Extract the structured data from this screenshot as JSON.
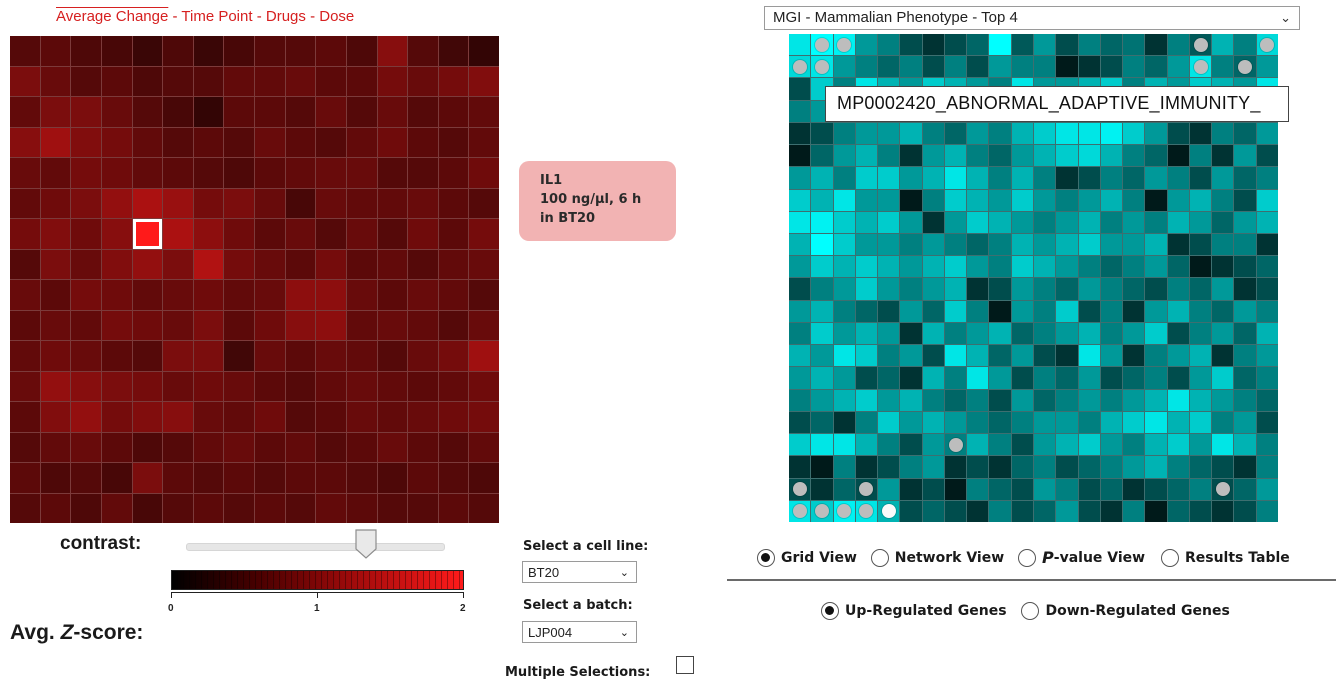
{
  "left_panel": {
    "tabs": [
      {
        "label": "Average Change",
        "active": true
      },
      {
        "label": "Time Point",
        "active": false
      },
      {
        "label": "Drugs",
        "active": false
      },
      {
        "label": "Dose",
        "active": false
      }
    ],
    "tab_separator": "-",
    "grid": {
      "rows": 16,
      "cols": 16,
      "values": [
        [
          0.55,
          0.6,
          0.5,
          0.45,
          0.35,
          0.5,
          0.35,
          0.45,
          0.55,
          0.55,
          0.6,
          0.5,
          0.95,
          0.55,
          0.4,
          0.3
        ],
        [
          0.85,
          0.7,
          0.55,
          0.6,
          0.5,
          0.55,
          0.55,
          0.65,
          0.65,
          0.7,
          0.6,
          0.6,
          0.8,
          0.7,
          0.8,
          0.9
        ],
        [
          0.65,
          0.85,
          0.85,
          0.7,
          0.55,
          0.45,
          0.3,
          0.6,
          0.6,
          0.55,
          0.7,
          0.55,
          0.7,
          0.55,
          0.6,
          0.65
        ],
        [
          0.95,
          1.15,
          0.9,
          0.8,
          0.65,
          0.55,
          0.6,
          0.55,
          0.7,
          0.6,
          0.55,
          0.65,
          0.75,
          0.6,
          0.55,
          0.65
        ],
        [
          0.7,
          0.65,
          0.8,
          0.75,
          0.65,
          0.6,
          0.55,
          0.5,
          0.6,
          0.65,
          0.7,
          0.7,
          0.55,
          0.55,
          0.6,
          0.75
        ],
        [
          0.65,
          0.75,
          0.85,
          1.05,
          1.25,
          1.1,
          0.8,
          0.85,
          0.7,
          0.45,
          0.7,
          0.65,
          0.65,
          0.7,
          0.6,
          0.55
        ],
        [
          0.8,
          0.9,
          0.75,
          0.95,
          2.0,
          1.25,
          1.0,
          0.75,
          0.6,
          0.7,
          0.55,
          0.7,
          0.55,
          0.75,
          0.6,
          0.8
        ],
        [
          0.55,
          0.85,
          0.7,
          0.9,
          1.05,
          0.85,
          1.3,
          0.8,
          0.7,
          0.6,
          0.8,
          0.6,
          0.65,
          0.55,
          0.65,
          0.7
        ],
        [
          0.7,
          0.6,
          0.8,
          0.75,
          0.65,
          0.7,
          0.75,
          0.65,
          0.7,
          1.0,
          1.0,
          0.7,
          0.6,
          0.7,
          0.65,
          0.55
        ],
        [
          0.6,
          0.7,
          0.65,
          0.8,
          0.75,
          0.7,
          0.85,
          0.6,
          0.75,
          0.95,
          1.0,
          0.65,
          0.7,
          0.65,
          0.55,
          0.7
        ],
        [
          0.65,
          0.75,
          0.7,
          0.6,
          0.55,
          0.85,
          0.85,
          0.4,
          0.7,
          0.6,
          0.7,
          0.65,
          0.55,
          0.7,
          0.8,
          1.15
        ],
        [
          0.7,
          1.05,
          0.95,
          0.85,
          0.8,
          0.7,
          0.75,
          0.7,
          0.6,
          0.55,
          0.65,
          0.7,
          0.65,
          0.6,
          0.65,
          0.75
        ],
        [
          0.6,
          0.9,
          1.05,
          0.8,
          0.9,
          0.95,
          0.7,
          0.65,
          0.75,
          0.55,
          0.6,
          0.7,
          0.65,
          0.7,
          0.75,
          0.8
        ],
        [
          0.55,
          0.65,
          0.7,
          0.6,
          0.5,
          0.55,
          0.65,
          0.7,
          0.6,
          0.65,
          0.55,
          0.6,
          0.7,
          0.6,
          0.55,
          0.65
        ],
        [
          0.6,
          0.5,
          0.55,
          0.45,
          0.85,
          0.6,
          0.55,
          0.6,
          0.55,
          0.6,
          0.6,
          0.55,
          0.5,
          0.6,
          0.55,
          0.5
        ],
        [
          0.55,
          0.6,
          0.5,
          0.65,
          0.45,
          0.55,
          0.6,
          0.55,
          0.6,
          0.55,
          0.65,
          0.6,
          0.55,
          0.55,
          0.6,
          0.55
        ]
      ],
      "selected_cell": {
        "row": 6,
        "col": 4
      }
    },
    "cell_info": {
      "line1": "IL1",
      "line2": "100 ng/µl, 6 h",
      "line3": "in BT20"
    },
    "contrast_label": "contrast:",
    "contrast_value": 0.7,
    "scale": {
      "min": 0,
      "max": 2,
      "ticks": [
        "0",
        "1",
        "2"
      ],
      "colors": [
        "#000000",
        "#ff1a1a"
      ]
    },
    "zscore_label_prefix": "Avg. ",
    "zscore_label_italic": "Z",
    "zscore_label_suffix": "-score:"
  },
  "controls": {
    "cell_line_label": "Select a cell line:",
    "cell_line_value": "BT20",
    "batch_label": "Select a batch:",
    "batch_value": "LJP004",
    "multiple_label": "Multiple Selections:",
    "multiple_checked": false
  },
  "right_panel": {
    "gene_set_value": "MGI - Mammalian Phenotype - Top 4",
    "tooltip": "MP0002420_ABNORMAL_ADAPTIVE_IMMUNITY_",
    "grid": {
      "rows": 22,
      "cols": 22,
      "values": [
        [
          0.9,
          1.0,
          0.95,
          0.6,
          0.5,
          0.3,
          0.2,
          0.3,
          0.4,
          1.0,
          0.35,
          0.6,
          0.3,
          0.5,
          0.4,
          0.45,
          0.2,
          0.5,
          0.35,
          0.7,
          0.5,
          0.85
        ],
        [
          0.85,
          0.9,
          0.6,
          0.5,
          0.4,
          0.5,
          0.3,
          0.5,
          0.3,
          0.6,
          0.5,
          0.5,
          0.1,
          0.2,
          0.3,
          0.5,
          0.4,
          0.6,
          0.9,
          0.5,
          0.4,
          0.6
        ],
        [
          0.3,
          0.8,
          0.5,
          0.9,
          0.7,
          0.6,
          0.8,
          0.7,
          0.6,
          0.5,
          0.9,
          0.6,
          0.6,
          0.7,
          0.8,
          0.5,
          0.7,
          0.6,
          0.8,
          0.7,
          0.6,
          0.9
        ],
        [
          0.5,
          0.6,
          0.7,
          0.8,
          0.5,
          0.4,
          0.6,
          0.5,
          0.6,
          0.3,
          0.5,
          0.7,
          0.6,
          0.5,
          0.4,
          0.6,
          0.5,
          0.4,
          0.5,
          0.6,
          0.7,
          0.5
        ],
        [
          0.2,
          0.3,
          0.5,
          0.6,
          0.6,
          0.7,
          0.5,
          0.4,
          0.6,
          0.5,
          0.7,
          0.8,
          0.9,
          0.9,
          0.95,
          0.8,
          0.6,
          0.3,
          0.2,
          0.5,
          0.4,
          0.6
        ],
        [
          0.1,
          0.4,
          0.6,
          0.7,
          0.5,
          0.2,
          0.6,
          0.7,
          0.5,
          0.4,
          0.6,
          0.7,
          0.8,
          0.85,
          0.7,
          0.5,
          0.4,
          0.1,
          0.5,
          0.2,
          0.6,
          0.3
        ],
        [
          0.6,
          0.7,
          0.5,
          0.8,
          0.8,
          0.6,
          0.7,
          0.9,
          0.7,
          0.5,
          0.7,
          0.5,
          0.2,
          0.3,
          0.5,
          0.4,
          0.6,
          0.5,
          0.3,
          0.6,
          0.4,
          0.5
        ],
        [
          0.8,
          0.7,
          0.9,
          0.6,
          0.6,
          0.1,
          0.5,
          0.8,
          0.7,
          0.6,
          0.8,
          0.6,
          0.5,
          0.6,
          0.7,
          0.5,
          0.1,
          0.6,
          0.7,
          0.5,
          0.3,
          0.8
        ],
        [
          0.9,
          0.95,
          0.8,
          0.7,
          0.8,
          0.6,
          0.2,
          0.6,
          0.8,
          0.7,
          0.6,
          0.5,
          0.6,
          0.7,
          0.5,
          0.6,
          0.5,
          0.7,
          0.6,
          0.4,
          0.6,
          0.7
        ],
        [
          0.7,
          1.0,
          0.8,
          0.6,
          0.6,
          0.5,
          0.6,
          0.5,
          0.4,
          0.5,
          0.7,
          0.6,
          0.7,
          0.8,
          0.6,
          0.6,
          0.7,
          0.2,
          0.3,
          0.5,
          0.5,
          0.2
        ],
        [
          0.6,
          0.8,
          0.7,
          0.8,
          0.7,
          0.6,
          0.7,
          0.8,
          0.6,
          0.5,
          0.8,
          0.7,
          0.6,
          0.5,
          0.4,
          0.5,
          0.6,
          0.4,
          0.1,
          0.2,
          0.3,
          0.4
        ],
        [
          0.3,
          0.5,
          0.6,
          0.8,
          0.6,
          0.5,
          0.6,
          0.7,
          0.2,
          0.3,
          0.6,
          0.5,
          0.4,
          0.6,
          0.5,
          0.4,
          0.3,
          0.5,
          0.4,
          0.6,
          0.2,
          0.3
        ],
        [
          0.6,
          0.7,
          0.5,
          0.4,
          0.3,
          0.6,
          0.4,
          0.8,
          0.5,
          0.1,
          0.6,
          0.5,
          0.8,
          0.3,
          0.5,
          0.2,
          0.6,
          0.7,
          0.5,
          0.4,
          0.6,
          0.5
        ],
        [
          0.5,
          0.8,
          0.6,
          0.7,
          0.6,
          0.2,
          0.7,
          0.5,
          0.6,
          0.7,
          0.4,
          0.5,
          0.6,
          0.7,
          0.5,
          0.6,
          0.8,
          0.3,
          0.5,
          0.6,
          0.4,
          0.7
        ],
        [
          0.7,
          0.6,
          0.9,
          0.8,
          0.5,
          0.6,
          0.3,
          0.9,
          0.7,
          0.4,
          0.6,
          0.3,
          0.2,
          0.9,
          0.6,
          0.2,
          0.5,
          0.6,
          0.7,
          0.2,
          0.5,
          0.6
        ],
        [
          0.6,
          0.7,
          0.6,
          0.3,
          0.4,
          0.2,
          0.7,
          0.5,
          0.9,
          0.6,
          0.3,
          0.5,
          0.4,
          0.6,
          0.3,
          0.4,
          0.5,
          0.3,
          0.6,
          0.8,
          0.4,
          0.5
        ],
        [
          0.5,
          0.6,
          0.7,
          0.8,
          0.6,
          0.7,
          0.5,
          0.4,
          0.5,
          0.3,
          0.6,
          0.4,
          0.5,
          0.6,
          0.5,
          0.6,
          0.7,
          0.9,
          0.7,
          0.6,
          0.5,
          0.4
        ],
        [
          0.3,
          0.4,
          0.2,
          0.5,
          0.8,
          0.6,
          0.7,
          0.6,
          0.5,
          0.4,
          0.5,
          0.6,
          0.6,
          0.5,
          0.7,
          0.8,
          0.9,
          0.7,
          0.8,
          0.5,
          0.6,
          0.3
        ],
        [
          0.8,
          0.9,
          0.9,
          0.7,
          0.5,
          0.3,
          0.6,
          0.5,
          0.7,
          0.5,
          0.3,
          0.6,
          0.7,
          0.8,
          0.6,
          0.5,
          0.7,
          0.8,
          0.6,
          0.9,
          0.7,
          0.5
        ],
        [
          0.2,
          0.1,
          0.5,
          0.2,
          0.3,
          0.5,
          0.6,
          0.2,
          0.3,
          0.2,
          0.4,
          0.5,
          0.3,
          0.4,
          0.5,
          0.6,
          0.7,
          0.5,
          0.4,
          0.3,
          0.2,
          0.5
        ],
        [
          0.3,
          0.2,
          0.4,
          0.3,
          0.6,
          0.2,
          0.3,
          0.1,
          0.5,
          0.4,
          0.3,
          0.6,
          0.5,
          0.3,
          0.4,
          0.2,
          0.3,
          0.4,
          0.5,
          0.3,
          0.4,
          0.6
        ],
        [
          0.9,
          0.8,
          0.95,
          0.9,
          0.7,
          0.3,
          0.4,
          0.3,
          0.2,
          0.5,
          0.3,
          0.4,
          0.6,
          0.3,
          0.2,
          0.5,
          0.1,
          0.4,
          0.3,
          0.2,
          0.3,
          0.5
        ]
      ],
      "dots": [
        {
          "row": 0,
          "col": 1,
          "color": "grey"
        },
        {
          "row": 0,
          "col": 2,
          "color": "grey"
        },
        {
          "row": 0,
          "col": 18,
          "color": "grey"
        },
        {
          "row": 0,
          "col": 21,
          "color": "grey"
        },
        {
          "row": 1,
          "col": 0,
          "color": "grey"
        },
        {
          "row": 1,
          "col": 1,
          "color": "grey"
        },
        {
          "row": 1,
          "col": 18,
          "color": "grey"
        },
        {
          "row": 1,
          "col": 20,
          "color": "grey"
        },
        {
          "row": 18,
          "col": 7,
          "color": "grey"
        },
        {
          "row": 20,
          "col": 0,
          "color": "grey"
        },
        {
          "row": 20,
          "col": 3,
          "color": "grey"
        },
        {
          "row": 20,
          "col": 19,
          "color": "grey"
        },
        {
          "row": 21,
          "col": 0,
          "color": "grey"
        },
        {
          "row": 21,
          "col": 1,
          "color": "grey"
        },
        {
          "row": 21,
          "col": 2,
          "color": "grey"
        },
        {
          "row": 21,
          "col": 3,
          "color": "grey"
        },
        {
          "row": 21,
          "col": 4,
          "color": "white"
        }
      ]
    },
    "views": [
      {
        "label": "Grid View",
        "checked": true
      },
      {
        "label": "Network View",
        "checked": false
      },
      {
        "label_italic": "P",
        "label": "-value View",
        "checked": false
      },
      {
        "label": "Results Table",
        "checked": false
      }
    ],
    "regulation": [
      {
        "label": "Up-Regulated Genes",
        "checked": true
      },
      {
        "label": "Down-Regulated Genes",
        "checked": false
      }
    ]
  },
  "colors": {
    "heat_low": "#000000",
    "heat_high": "#ff1a1a",
    "cyan_low": "#000000",
    "cyan_high": "#00ffff",
    "tab_link": "#d62020",
    "cell_info_bg": "#f2b3b3"
  },
  "icons": [
    "chevron-down-icon",
    "slider-handle-icon",
    "radio-checked-icon",
    "radio-unchecked-icon"
  ]
}
